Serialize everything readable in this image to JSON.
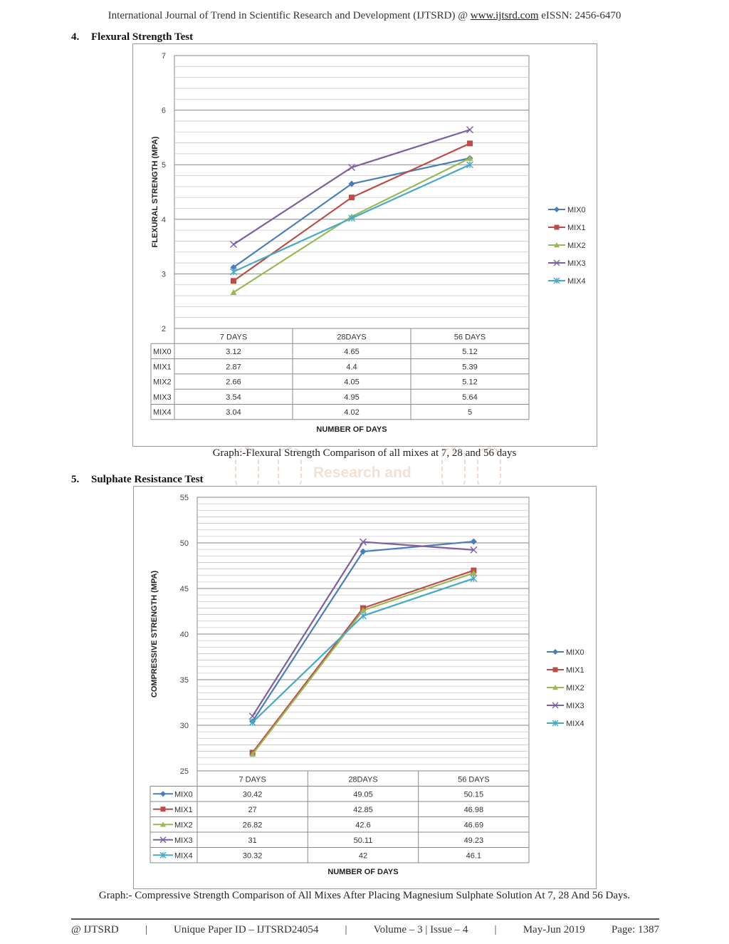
{
  "header": {
    "journal": "International Journal of Trend in Scientific Research and Development (IJTSRD) @ ",
    "url": "www.ijtsrd.com",
    "eissn": " eISSN: 2456-6470"
  },
  "section4": {
    "number": "4.",
    "title": "Flexural Strength Test"
  },
  "section5": {
    "number": "5.",
    "title": "Sulphate Resistance Test"
  },
  "caption1": "Graph:-Flexural Strength Comparison of all mixes at 7, 28 and 56 days",
  "caption2": "Graph:- Compressive Strength Comparison of All Mixes After Placing Magnesium Sulphate Solution At 7, 28 And 56 Days.",
  "watermark": {
    "line1": "Research and"
  },
  "footer": {
    "left": "@ IJTSRD",
    "paper_id": "Unique Paper ID – IJTSRD24054",
    "volume": "Volume – 3 | Issue – 4",
    "date": "May-Jun 2019",
    "page": "Page: 1387",
    "sep": "|"
  },
  "colors": {
    "MIX0": "#4a7ebb",
    "MIX1": "#be4b48",
    "MIX2": "#98b954",
    "MIX3": "#7d60a0",
    "MIX4": "#46aac5"
  },
  "chart_data": [
    {
      "type": "line",
      "title": "",
      "xlabel": "NUMBER OF DAYS",
      "ylabel": "FLEXURAL STRENGTH (MPA)",
      "ylim": [
        2,
        7
      ],
      "yticks": [
        "2",
        "3",
        "4",
        "5",
        "6",
        "7"
      ],
      "categories": [
        "7 DAYS",
        "28DAYS",
        "56 DAYS"
      ],
      "legend": "right",
      "table_legend_markers": false,
      "series": [
        {
          "name": "MIX0",
          "marker": "diamond",
          "values": [
            3.12,
            4.65,
            5.12
          ],
          "labels": [
            "3.12",
            "4.65",
            "5.12"
          ]
        },
        {
          "name": "MIX1",
          "marker": "square",
          "values": [
            2.87,
            4.4,
            5.39
          ],
          "labels": [
            "2.87",
            "4.4",
            "5.39"
          ]
        },
        {
          "name": "MIX2",
          "marker": "triangle",
          "values": [
            2.66,
            4.05,
            5.12
          ],
          "labels": [
            "2.66",
            "4.05",
            "5.12"
          ]
        },
        {
          "name": "MIX3",
          "marker": "x",
          "values": [
            3.54,
            4.95,
            5.64
          ],
          "labels": [
            "3.54",
            "4.95",
            "5.64"
          ]
        },
        {
          "name": "MIX4",
          "marker": "star",
          "values": [
            3.04,
            4.02,
            5
          ],
          "labels": [
            "3.04",
            "4.02",
            "5"
          ]
        }
      ]
    },
    {
      "type": "line",
      "title": "",
      "xlabel": "NUMBER OF DAYS",
      "ylabel": "COMPRESSIVE STRENGTH (MPA)",
      "ylim": [
        25,
        55
      ],
      "yticks": [
        "25",
        "30",
        "35",
        "40",
        "45",
        "50",
        "55"
      ],
      "categories": [
        "7 DAYS",
        "28DAYS",
        "56 DAYS"
      ],
      "legend": "right",
      "table_legend_markers": true,
      "series": [
        {
          "name": "MIX0",
          "marker": "diamond",
          "values": [
            30.42,
            49.05,
            50.15
          ],
          "labels": [
            "30.42",
            "49.05",
            "50.15"
          ]
        },
        {
          "name": "MIX1",
          "marker": "square",
          "values": [
            27,
            42.85,
            46.98
          ],
          "labels": [
            "27",
            "42.85",
            "46.98"
          ]
        },
        {
          "name": "MIX2",
          "marker": "triangle",
          "values": [
            26.82,
            42.6,
            46.69
          ],
          "labels": [
            "26.82",
            "42.6",
            "46.69"
          ]
        },
        {
          "name": "MIX3",
          "marker": "x",
          "values": [
            31,
            50.11,
            49.23
          ],
          "labels": [
            "31",
            "50.11",
            "49.23"
          ]
        },
        {
          "name": "MIX4",
          "marker": "star",
          "values": [
            30.32,
            42,
            46.1
          ],
          "labels": [
            "30.32",
            "42",
            "46.1"
          ]
        }
      ]
    }
  ]
}
